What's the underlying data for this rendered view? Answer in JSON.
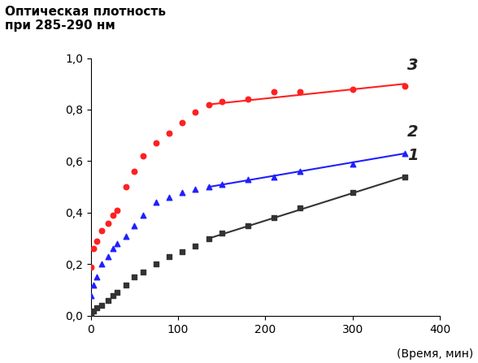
{
  "chart_data": {
    "type": "scatter",
    "y_label": "Оптическая плотность\nпри 285-290 нм",
    "x_label": "(Время, мин)",
    "xlim": [
      0,
      400
    ],
    "xticks": [
      0,
      100,
      200,
      300,
      400
    ],
    "ylim": [
      0,
      1.0
    ],
    "yticks": [
      {
        "value": 0.0,
        "label": "0,0"
      },
      {
        "value": 0.2,
        "label": "0,2"
      },
      {
        "value": 0.4,
        "label": "0,4"
      },
      {
        "value": 0.6,
        "label": "0,6"
      },
      {
        "value": 0.8,
        "label": "0,8"
      },
      {
        "value": 1.0,
        "label": "1,0"
      }
    ],
    "grid": false,
    "series": [
      {
        "name": "1",
        "color": "#333333",
        "marker": "square",
        "x": [
          0,
          3,
          7,
          12,
          20,
          25,
          30,
          40,
          50,
          60,
          75,
          90,
          105,
          120,
          135,
          150,
          180,
          210,
          240,
          300,
          360
        ],
        "values": [
          0.0,
          0.02,
          0.03,
          0.04,
          0.06,
          0.08,
          0.09,
          0.12,
          0.15,
          0.17,
          0.2,
          0.23,
          0.25,
          0.27,
          0.3,
          0.32,
          0.35,
          0.38,
          0.42,
          0.48,
          0.54
        ],
        "fit_x": [
          135,
          360
        ],
        "fit_values": [
          0.3,
          0.54
        ]
      },
      {
        "name": "2",
        "color": "#1f1fff",
        "marker": "triangle",
        "x": [
          0,
          3,
          7,
          12,
          20,
          25,
          30,
          40,
          50,
          60,
          75,
          90,
          105,
          120,
          135,
          150,
          180,
          210,
          240,
          300,
          360
        ],
        "values": [
          0.08,
          0.12,
          0.15,
          0.2,
          0.23,
          0.26,
          0.28,
          0.31,
          0.35,
          0.39,
          0.44,
          0.46,
          0.48,
          0.49,
          0.5,
          0.51,
          0.53,
          0.54,
          0.56,
          0.59,
          0.63
        ],
        "fit_x": [
          135,
          360
        ],
        "fit_values": [
          0.5,
          0.63
        ]
      },
      {
        "name": "3",
        "color": "#ff2020",
        "marker": "circle",
        "x": [
          0,
          3,
          7,
          12,
          20,
          25,
          30,
          40,
          50,
          60,
          75,
          90,
          105,
          120,
          135,
          150,
          180,
          210,
          240,
          300,
          360
        ],
        "values": [
          0.19,
          0.26,
          0.29,
          0.33,
          0.36,
          0.39,
          0.41,
          0.5,
          0.56,
          0.62,
          0.67,
          0.71,
          0.75,
          0.79,
          0.82,
          0.83,
          0.84,
          0.87,
          0.87,
          0.88,
          0.89
        ],
        "fit_x": [
          135,
          360
        ],
        "fit_values": [
          0.82,
          0.9
        ]
      }
    ]
  }
}
